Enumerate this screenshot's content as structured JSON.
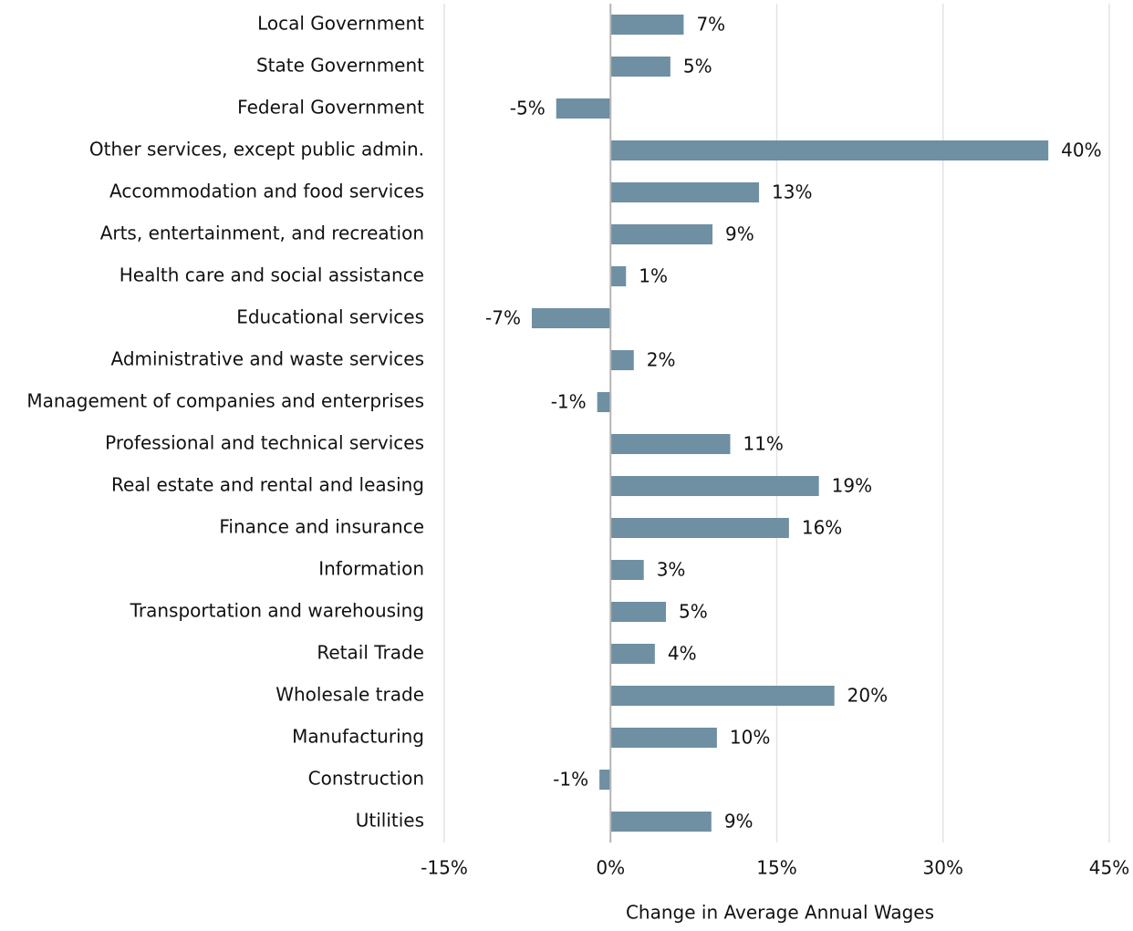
{
  "chart_data": {
    "type": "hbar",
    "x_label": "Change in Average Annual Wages",
    "categories": [
      "Local Government",
      "State Government",
      "Federal Government",
      "Other services, except public admin.",
      "Accommodation and food services",
      "Arts, entertainment, and recreation",
      "Health care and social assistance",
      "Educational services",
      "Administrative and waste services",
      "Management of companies and enterprises",
      "Professional and technical services",
      "Real estate and rental and leasing",
      "Finance and insurance",
      "Information",
      "Transportation and warehousing",
      "Retail Trade",
      "Wholesale trade",
      "Manufacturing",
      "Construction",
      "Utilities"
    ],
    "values": [
      6.6,
      5.4,
      -4.9,
      39.5,
      13.4,
      9.2,
      1.4,
      -7.1,
      2.1,
      -1.2,
      10.8,
      18.8,
      16.1,
      3.0,
      5.0,
      4.0,
      20.2,
      9.6,
      -1.0,
      9.1
    ],
    "value_labels": [
      "7%",
      "5%",
      "-5%",
      "40%",
      "13%",
      "9%",
      "1%",
      "-7%",
      "2%",
      "-1%",
      "11%",
      "19%",
      "16%",
      "3%",
      "5%",
      "4%",
      "20%",
      "10%",
      "-1%",
      "9%"
    ],
    "color": "#6f8fa3",
    "xlim": [
      -15,
      45
    ],
    "xticks": [
      {
        "value": -15,
        "label": "-15%"
      },
      {
        "value": 0,
        "label": "0%"
      },
      {
        "value": 15,
        "label": "15%"
      },
      {
        "value": 30,
        "label": "30%"
      },
      {
        "value": 45,
        "label": "45%"
      }
    ],
    "grid": true
  }
}
